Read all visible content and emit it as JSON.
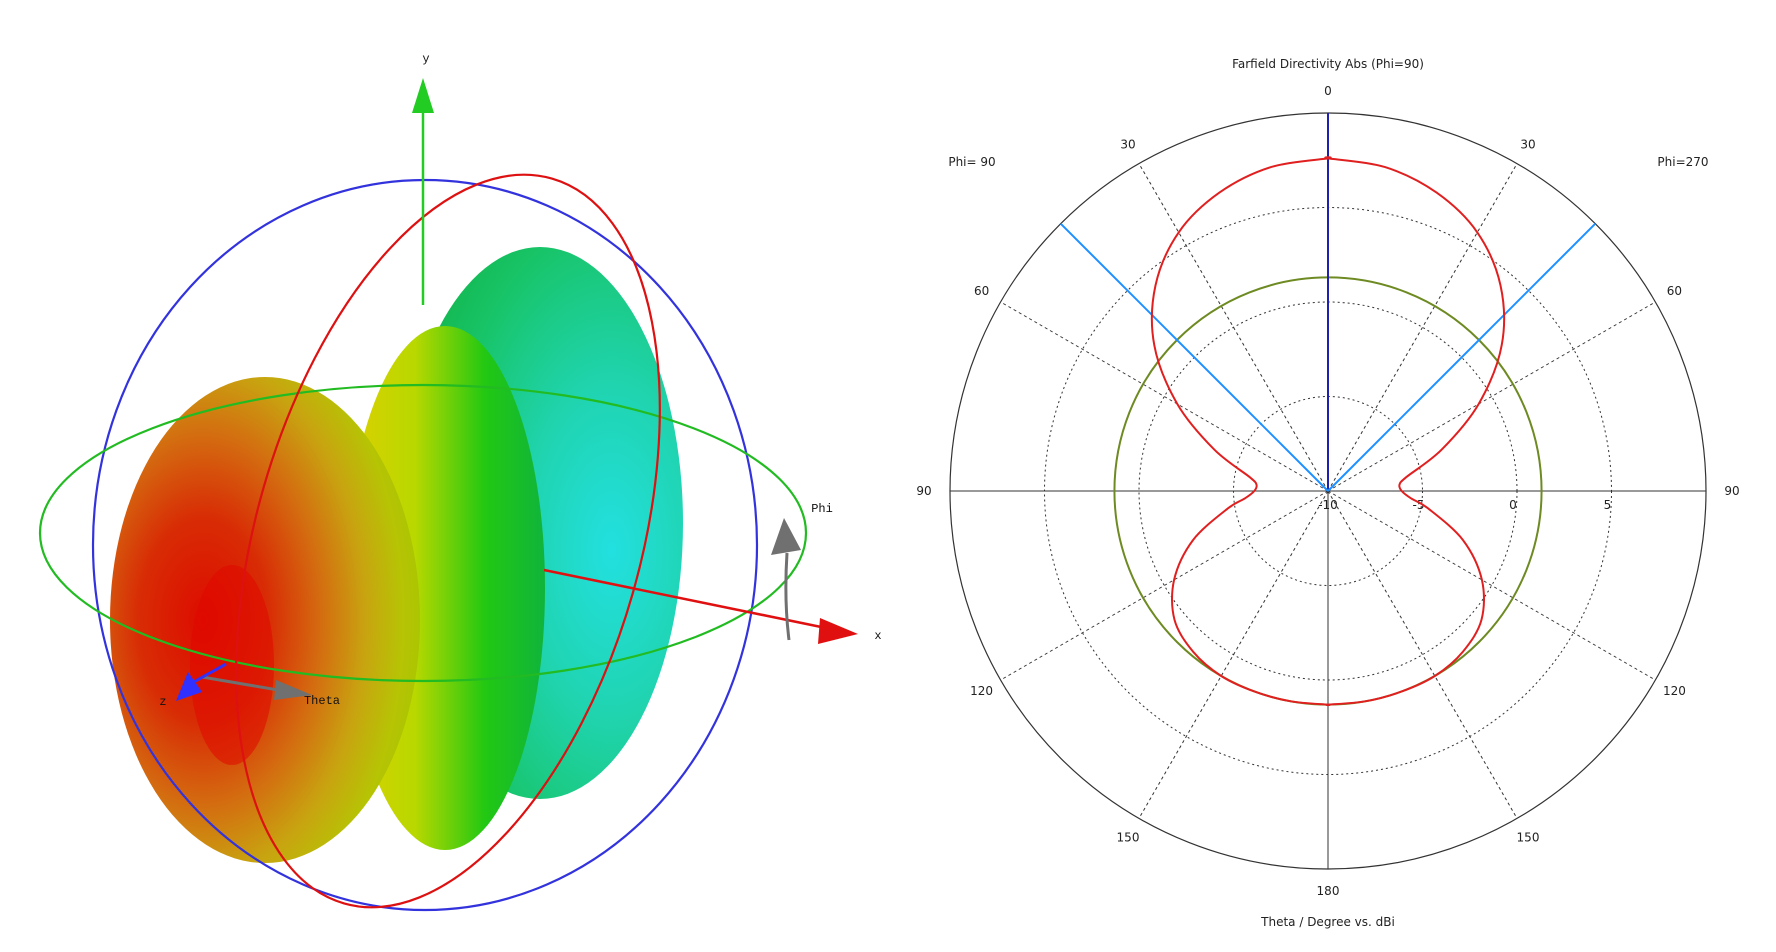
{
  "left_view": {
    "axes": {
      "y_label": "y",
      "x_label": "x",
      "z_label": "z",
      "phi_label": "Phi",
      "theta_label": "Theta"
    },
    "colors": {
      "x_axis": "#e01010",
      "y_axis": "#22cc22",
      "z_axis": "#3030ff",
      "ring_blue": "#3333dd",
      "ring_red": "#dd1111",
      "ring_green": "#22bb22",
      "arrow_gray": "#707070",
      "pattern_max": "#d81e05",
      "pattern_mid": "#d6d400",
      "pattern_low": "#10c040",
      "pattern_min": "#28d8cc"
    }
  },
  "chart_data": {
    "type": "polar",
    "title": "Farfield Directivity Abs (Phi=90)",
    "xlabel": "Theta / Degree vs. dBi",
    "left_half_label": "Phi= 90",
    "right_half_label": "Phi=270",
    "angle_ticks": [
      "0",
      "30",
      "30",
      "60",
      "60",
      "90",
      "90",
      "120",
      "120",
      "150",
      "150",
      "180"
    ],
    "radial_ticks": [
      "-10",
      "-5",
      "0",
      "5"
    ],
    "radial_range_dBi": [
      -10,
      10
    ],
    "grid": true,
    "colors": {
      "pattern": "#e02020",
      "reference_circle": "#6e8a22",
      "main_lobe": "#2020b0",
      "beam_width": "#1e90ff",
      "grid": "#333333"
    },
    "series": [
      {
        "type": "pattern",
        "theta_deg": [
          0,
          10,
          20,
          30,
          40,
          50,
          60,
          70,
          80,
          85,
          90,
          95,
          100,
          110,
          120,
          130,
          140,
          150,
          160,
          170,
          180
        ],
        "dBi": [
          7.6,
          7.4,
          6.8,
          5.8,
          4.2,
          2.0,
          -0.8,
          -3.6,
          -5.8,
          -6.2,
          -6.1,
          -5.6,
          -4.6,
          -2.4,
          -0.6,
          0.6,
          1.1,
          1.3,
          1.3,
          1.3,
          1.3
        ]
      },
      {
        "type": "reference_circle",
        "dBi": 1.3
      },
      {
        "type": "main_lobe_direction",
        "theta_deg": 0
      },
      {
        "type": "beam_width_lines",
        "theta_deg": [
          -45,
          45
        ]
      }
    ]
  }
}
